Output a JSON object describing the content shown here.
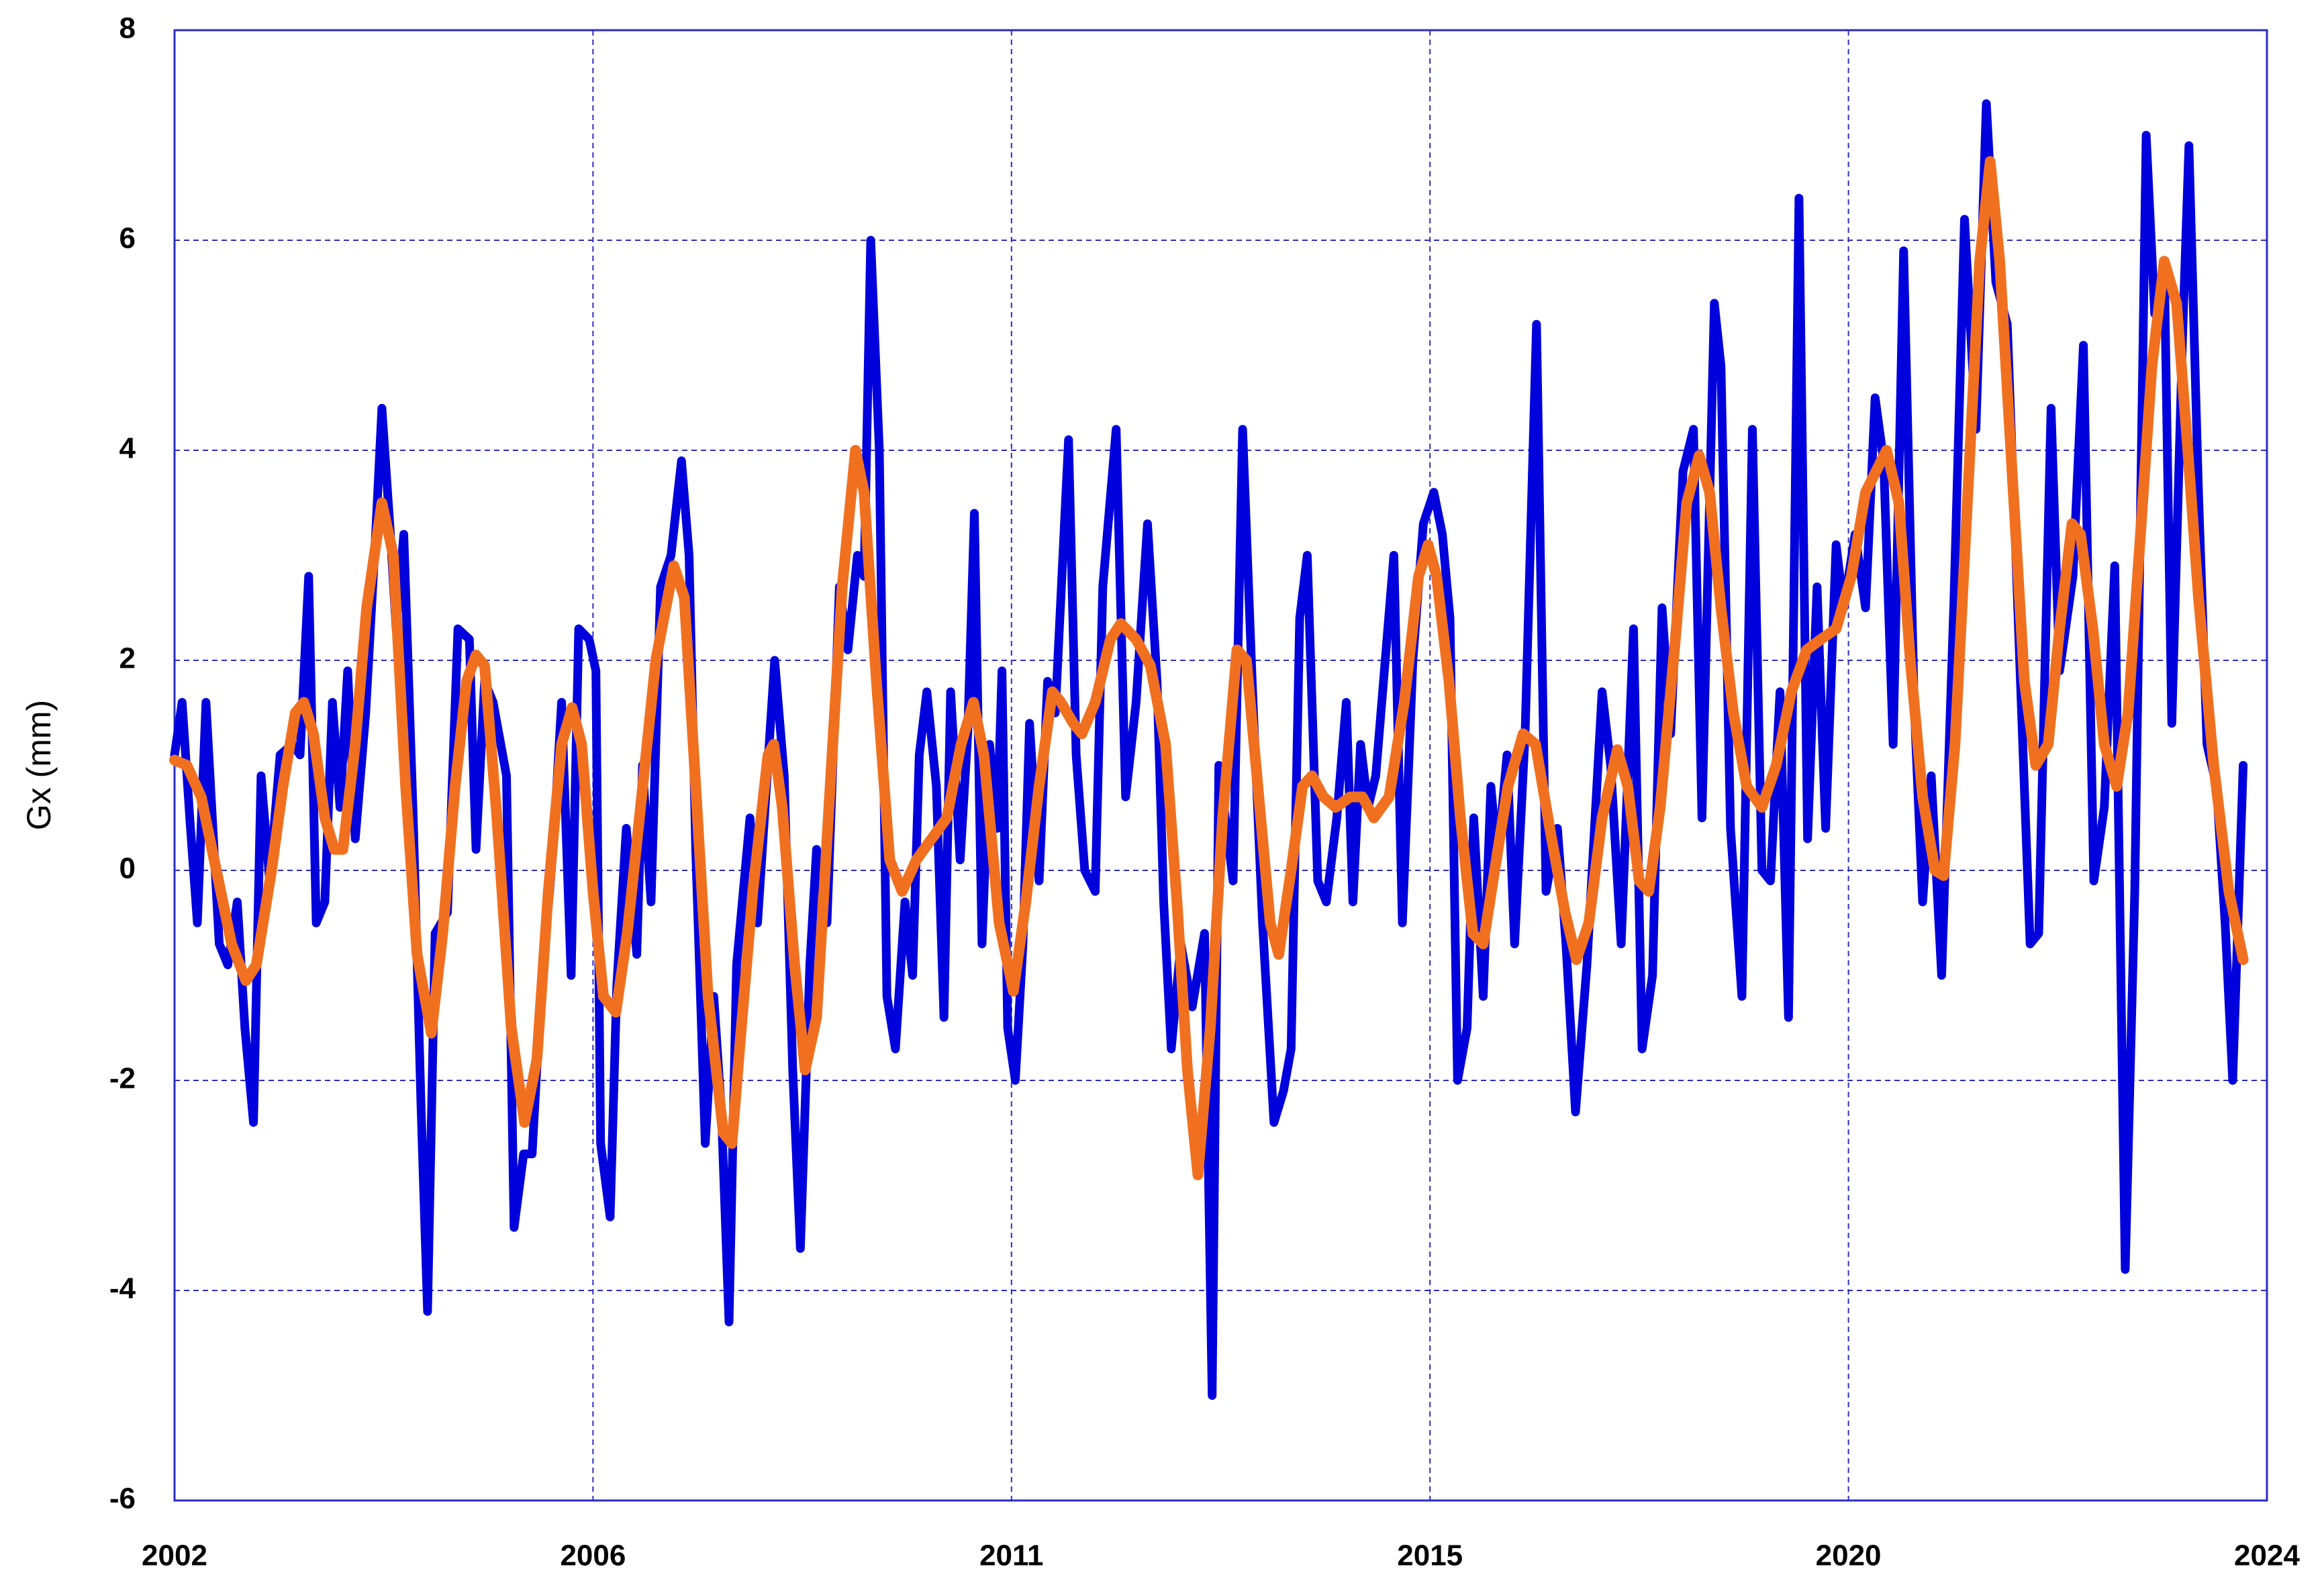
{
  "chart_data": {
    "type": "line",
    "y_label": "Gx (mm)",
    "xlim": [
      2002,
      2024
    ],
    "xticks": [
      2002,
      {
        "value": 2006.4,
        "label": "2006"
      },
      {
        "value": 2010.8,
        "label": "2011"
      },
      {
        "value": 2015.2,
        "label": "2015"
      },
      {
        "value": 2019.6,
        "label": "2020"
      },
      2024
    ],
    "ylim": [
      -6,
      8
    ],
    "yticks": [
      -6,
      -4,
      -2,
      0,
      2,
      4,
      6,
      8
    ],
    "grid": true,
    "series": [
      {
        "color": "#0000dd",
        "x": [
          2002.0,
          2002.08,
          2002.16,
          2002.24,
          2002.33,
          2002.47,
          2002.56,
          2002.66,
          2002.74,
          2002.83,
          2002.91,
          2003.0,
          2003.11,
          2003.24,
          2003.32,
          2003.41,
          2003.49,
          2003.58,
          2003.66,
          2003.74,
          2003.82,
          2003.9,
          2004.01,
          2004.12,
          2004.18,
          2004.27,
          2004.33,
          2004.41,
          2004.51,
          2004.59,
          2004.66,
          2004.74,
          2004.87,
          2004.98,
          2005.1,
          2005.17,
          2005.26,
          2005.35,
          2005.49,
          2005.57,
          2005.67,
          2005.76,
          2005.85,
          2005.98,
          2006.07,
          2006.17,
          2006.25,
          2006.36,
          2006.43,
          2006.48,
          2006.58,
          2006.65,
          2006.75,
          2006.86,
          2006.92,
          2007.01,
          2007.11,
          2007.22,
          2007.33,
          2007.41,
          2007.48,
          2007.58,
          2007.67,
          2007.75,
          2007.83,
          2007.91,
          2008.05,
          2008.13,
          2008.31,
          2008.41,
          2008.5,
          2008.58,
          2008.68,
          2008.75,
          2008.86,
          2008.99,
          2009.08,
          2009.18,
          2009.25,
          2009.32,
          2009.41,
          2009.49,
          2009.58,
          2009.68,
          2009.76,
          2009.83,
          2009.91,
          2010.01,
          2010.09,
          2010.16,
          2010.26,
          2010.34,
          2010.41,
          2010.49,
          2010.57,
          2010.65,
          2010.7,
          2010.76,
          2010.84,
          2010.92,
          2010.99,
          2011.09,
          2011.18,
          2011.26,
          2011.4,
          2011.48,
          2011.57,
          2011.68,
          2011.76,
          2011.9,
          2012.0,
          2012.11,
          2012.23,
          2012.33,
          2012.4,
          2012.48,
          2012.58,
          2012.7,
          2012.83,
          2012.91,
          2012.98,
          2013.13,
          2013.23,
          2013.33,
          2013.44,
          2013.56,
          2013.66,
          2013.74,
          2013.83,
          2013.91,
          2014.02,
          2014.11,
          2014.22,
          2014.32,
          2014.39,
          2014.47,
          2014.55,
          2014.63,
          2014.82,
          2014.91,
          2015.02,
          2015.13,
          2015.24,
          2015.33,
          2015.41,
          2015.49,
          2015.59,
          2015.66,
          2015.76,
          2015.84,
          2015.91,
          2016.01,
          2016.09,
          2016.2,
          2016.32,
          2016.42,
          2016.54,
          2016.63,
          2016.73,
          2016.85,
          2017.01,
          2017.1,
          2017.21,
          2017.34,
          2017.43,
          2017.54,
          2017.64,
          2017.73,
          2017.86,
          2017.97,
          2018.06,
          2018.19,
          2018.26,
          2018.36,
          2018.48,
          2018.59,
          2018.69,
          2018.78,
          2018.88,
          2018.97,
          2019.08,
          2019.17,
          2019.27,
          2019.36,
          2019.47,
          2019.55,
          2019.67,
          2019.78,
          2019.88,
          2019.97,
          2020.07,
          2020.18,
          2020.29,
          2020.38,
          2020.47,
          2020.58,
          2020.71,
          2020.82,
          2020.94,
          2021.05,
          2021.15,
          2021.27,
          2021.38,
          2021.51,
          2021.6,
          2021.73,
          2021.82,
          2021.96,
          2022.07,
          2022.18,
          2022.29,
          2022.4,
          2022.51,
          2022.61,
          2022.73,
          2022.82,
          2022.92,
          2023.0,
          2023.11,
          2023.18,
          2023.28,
          2023.37,
          2023.47,
          2023.56,
          2023.64,
          2023.75
        ],
        "values": [
          1.1,
          1.6,
          0.5,
          -0.5,
          1.6,
          -0.7,
          -0.9,
          -0.3,
          -1.5,
          -2.4,
          0.9,
          -0.1,
          1.1,
          1.2,
          1.1,
          2.8,
          -0.5,
          -0.3,
          1.6,
          0.6,
          1.9,
          0.3,
          1.5,
          3.3,
          4.4,
          3.2,
          2.3,
          3.2,
          0.5,
          -2.2,
          -4.2,
          -0.6,
          -0.4,
          2.3,
          2.2,
          0.2,
          1.8,
          1.6,
          0.9,
          -3.4,
          -2.7,
          -2.7,
          -1.2,
          0.2,
          1.6,
          -1.0,
          2.3,
          2.2,
          1.9,
          -2.6,
          -3.3,
          -1.1,
          0.4,
          -0.8,
          1.0,
          -0.3,
          2.7,
          3.0,
          3.9,
          3.0,
          0.2,
          -2.6,
          -1.2,
          -2.3,
          -4.3,
          -0.9,
          0.5,
          -0.5,
          2.0,
          0.9,
          -1.9,
          -3.6,
          -0.9,
          0.2,
          -0.5,
          2.7,
          2.1,
          3.0,
          2.8,
          6.0,
          4.0,
          -1.2,
          -1.7,
          -0.3,
          -1.0,
          1.1,
          1.7,
          0.8,
          -1.4,
          1.7,
          0.1,
          1.3,
          3.4,
          -0.7,
          1.2,
          0.4,
          1.9,
          -1.5,
          -2.0,
          -0.7,
          1.4,
          -0.1,
          1.8,
          1.5,
          4.1,
          1.1,
          0.0,
          -0.2,
          2.7,
          4.2,
          0.7,
          1.6,
          3.3,
          1.8,
          -0.3,
          -1.7,
          -0.7,
          -1.3,
          -0.6,
          -5.0,
          1.0,
          -0.1,
          4.2,
          1.8,
          -0.5,
          -2.4,
          -2.1,
          -1.7,
          2.4,
          3.0,
          -0.1,
          -0.3,
          0.5,
          1.6,
          -0.3,
          1.2,
          0.6,
          0.9,
          3.0,
          -0.5,
          2.0,
          3.3,
          3.6,
          3.2,
          2.4,
          -2.0,
          -1.5,
          0.5,
          -1.2,
          0.8,
          0.1,
          1.1,
          -0.7,
          1.3,
          5.2,
          -0.2,
          0.4,
          -0.7,
          -2.3,
          -0.9,
          1.7,
          1.0,
          -0.7,
          2.3,
          -1.7,
          -1.0,
          2.5,
          1.3,
          3.8,
          4.2,
          0.5,
          5.4,
          4.8,
          0.4,
          -1.2,
          4.2,
          0.0,
          -0.1,
          1.7,
          -1.4,
          6.4,
          0.3,
          2.7,
          0.4,
          3.1,
          2.5,
          3.2,
          2.5,
          4.5,
          3.9,
          1.2,
          5.9,
          1.6,
          -0.3,
          0.9,
          -1.0,
          2.6,
          6.2,
          4.2,
          7.3,
          5.6,
          5.2,
          2.5,
          -0.7,
          -0.6,
          4.4,
          1.9,
          2.8,
          5.0,
          -0.1,
          0.6,
          2.9,
          -3.8,
          -0.2,
          7.0,
          5.3,
          5.8,
          1.4,
          5.0,
          6.9,
          3.6,
          1.2,
          0.8,
          -0.5,
          -2.0,
          1.0
        ]
      },
      {
        "color": "#f07020",
        "x": [
          2002.0,
          2002.13,
          2002.28,
          2002.44,
          2002.6,
          2002.75,
          2002.86,
          2003.02,
          2003.14,
          2003.27,
          2003.36,
          2003.46,
          2003.58,
          2003.68,
          2003.77,
          2003.9,
          2004.02,
          2004.18,
          2004.3,
          2004.43,
          2004.55,
          2004.7,
          2004.82,
          2004.95,
          2005.07,
          2005.17,
          2005.26,
          2005.39,
          2005.54,
          2005.68,
          2005.81,
          2005.93,
          2006.07,
          2006.18,
          2006.28,
          2006.4,
          2006.51,
          2006.64,
          2006.76,
          2006.9,
          2007.06,
          2007.25,
          2007.36,
          2007.48,
          2007.61,
          2007.77,
          2007.86,
          2007.95,
          2008.08,
          2008.24,
          2008.3,
          2008.39,
          2008.52,
          2008.63,
          2008.75,
          2008.88,
          2009.02,
          2009.16,
          2009.25,
          2009.38,
          2009.52,
          2009.65,
          2009.8,
          2009.96,
          2010.12,
          2010.27,
          2010.4,
          2010.51,
          2010.67,
          2010.82,
          2010.95,
          2011.09,
          2011.23,
          2011.32,
          2011.45,
          2011.54,
          2011.68,
          2011.84,
          2011.95,
          2012.11,
          2012.26,
          2012.42,
          2012.54,
          2012.65,
          2012.76,
          2012.89,
          2013.02,
          2013.17,
          2013.27,
          2013.39,
          2013.52,
          2013.61,
          2013.74,
          2013.86,
          2013.96,
          2014.08,
          2014.21,
          2014.36,
          2014.49,
          2014.61,
          2014.77,
          2014.93,
          2015.08,
          2015.18,
          2015.27,
          2015.4,
          2015.52,
          2015.65,
          2015.76,
          2015.88,
          2016.02,
          2016.18,
          2016.31,
          2016.46,
          2016.62,
          2016.74,
          2016.87,
          2017.01,
          2017.17,
          2017.28,
          2017.4,
          2017.5,
          2017.62,
          2017.78,
          2017.9,
          2018.03,
          2018.14,
          2018.26,
          2018.39,
          2018.53,
          2018.69,
          2018.84,
          2019.0,
          2019.16,
          2019.31,
          2019.47,
          2019.63,
          2019.78,
          2020.0,
          2020.13,
          2020.25,
          2020.38,
          2020.51,
          2020.6,
          2020.72,
          2020.85,
          2020.98,
          2021.09,
          2021.19,
          2021.32,
          2021.45,
          2021.57,
          2021.7,
          2021.82,
          2021.95,
          2022.04,
          2022.17,
          2022.29,
          2022.42,
          2022.54,
          2022.67,
          2022.79,
          2022.92,
          2023.05,
          2023.16,
          2023.28,
          2023.44,
          2023.6,
          2023.75
        ],
        "values": [
          1.05,
          1.0,
          0.7,
          0.0,
          -0.7,
          -1.05,
          -0.9,
          0.0,
          0.8,
          1.5,
          1.6,
          1.3,
          0.5,
          0.2,
          0.2,
          1.2,
          2.5,
          3.5,
          3.0,
          0.8,
          -0.8,
          -1.55,
          -0.6,
          0.8,
          1.8,
          2.05,
          1.95,
          0.5,
          -1.5,
          -2.4,
          -1.8,
          -0.2,
          1.2,
          1.55,
          1.2,
          -0.2,
          -1.2,
          -1.35,
          -0.6,
          0.6,
          2.0,
          2.9,
          2.6,
          0.8,
          -1.2,
          -2.5,
          -2.6,
          -1.6,
          -0.2,
          1.1,
          1.2,
          0.6,
          -0.9,
          -1.9,
          -1.4,
          0.6,
          2.7,
          4.0,
          3.6,
          1.8,
          0.1,
          -0.2,
          0.1,
          0.3,
          0.5,
          1.2,
          1.6,
          1.1,
          -0.5,
          -1.15,
          -0.3,
          0.8,
          1.7,
          1.6,
          1.4,
          1.3,
          1.6,
          2.2,
          2.35,
          2.2,
          1.95,
          1.2,
          -0.3,
          -1.9,
          -2.9,
          -1.5,
          0.5,
          2.1,
          2.0,
          0.8,
          -0.5,
          -0.8,
          0.0,
          0.8,
          0.9,
          0.7,
          0.6,
          0.7,
          0.7,
          0.5,
          0.7,
          1.6,
          2.8,
          3.1,
          2.8,
          1.8,
          0.5,
          -0.6,
          -0.7,
          0.0,
          0.8,
          1.3,
          1.2,
          0.4,
          -0.4,
          -0.85,
          -0.5,
          0.5,
          1.15,
          0.8,
          -0.1,
          -0.2,
          0.6,
          2.2,
          3.5,
          3.95,
          3.6,
          2.5,
          1.5,
          0.8,
          0.6,
          1.0,
          1.7,
          2.1,
          2.2,
          2.3,
          2.8,
          3.6,
          4.0,
          3.5,
          2.0,
          0.7,
          0.0,
          -0.05,
          1.2,
          3.5,
          5.8,
          6.75,
          5.8,
          3.8,
          1.8,
          1.0,
          1.2,
          2.3,
          3.3,
          3.2,
          2.3,
          1.2,
          0.8,
          1.5,
          3.2,
          4.8,
          5.8,
          5.4,
          4.1,
          2.6,
          1.0,
          -0.2,
          -0.85
        ]
      }
    ]
  }
}
